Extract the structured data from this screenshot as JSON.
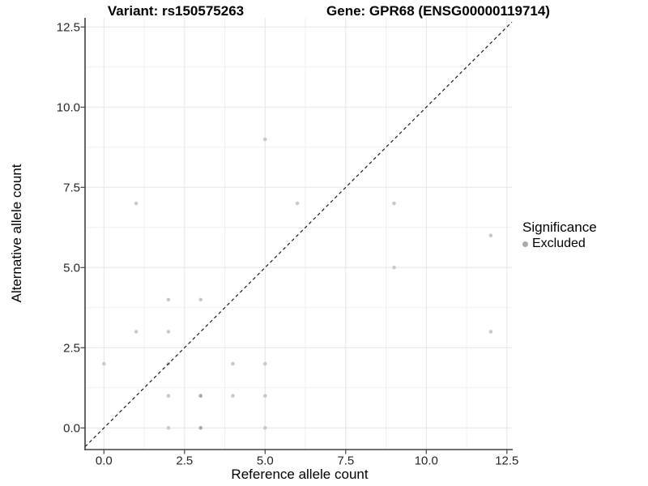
{
  "chart_data": {
    "type": "scatter",
    "titles": {
      "left": "Variant: rs150575263",
      "right": "Gene: GPR68 (ENSG00000119714)"
    },
    "xlabel": "Reference allele count",
    "ylabel": "Alternative allele count",
    "xlim": [
      -0.59,
      12.66
    ],
    "ylim": [
      -0.66,
      13.43
    ],
    "x_ticks": [
      0,
      2.5,
      5,
      7.5,
      10,
      12.5
    ],
    "x_tick_labels": [
      "0.0",
      "2.5",
      "5.0",
      "7.5",
      "10.0",
      "12.5"
    ],
    "y_ticks": [
      0,
      2.5,
      5,
      7.5,
      10,
      12.5
    ],
    "y_tick_labels": [
      "0.0",
      "2.5",
      "5.0",
      "7.5",
      "10.0",
      "12.5"
    ],
    "minor_ticks": [
      1.25,
      3.75,
      6.25,
      8.75,
      11.25
    ],
    "grid": "major+minor",
    "reference_line": {
      "equation": "y = x",
      "style": "dashed",
      "color": "#1a1a1a"
    },
    "series": [
      {
        "name": "Excluded",
        "points": [
          {
            "x": 0,
            "y": 2
          },
          {
            "x": 1,
            "y": 3
          },
          {
            "x": 1,
            "y": 7
          },
          {
            "x": 2,
            "y": 0
          },
          {
            "x": 2,
            "y": 1
          },
          {
            "x": 2,
            "y": 2
          },
          {
            "x": 2,
            "y": 3
          },
          {
            "x": 2,
            "y": 4
          },
          {
            "x": 3,
            "y": 0,
            "overplotted": true
          },
          {
            "x": 3,
            "y": 1,
            "overplotted": true
          },
          {
            "x": 3,
            "y": 4
          },
          {
            "x": 4,
            "y": 1
          },
          {
            "x": 4,
            "y": 2
          },
          {
            "x": 5,
            "y": 0
          },
          {
            "x": 5,
            "y": 1
          },
          {
            "x": 5,
            "y": 2
          },
          {
            "x": 5,
            "y": 9
          },
          {
            "x": 6,
            "y": 7
          },
          {
            "x": 9,
            "y": 5
          },
          {
            "x": 9,
            "y": 7
          },
          {
            "x": 12,
            "y": 3
          },
          {
            "x": 12,
            "y": 6
          }
        ]
      }
    ],
    "legend": {
      "position": "right",
      "title": "Significance",
      "items": [
        {
          "label": "Excluded",
          "color": "#aaaaaa"
        }
      ]
    },
    "colors": {
      "point": "#c9c9c9",
      "point_overplotted": "#a9a9a9",
      "grid_major": "#e5e5e5",
      "grid_minor": "#f0f0f0",
      "axis_line": "#404040",
      "tick_text": "#262626"
    }
  }
}
